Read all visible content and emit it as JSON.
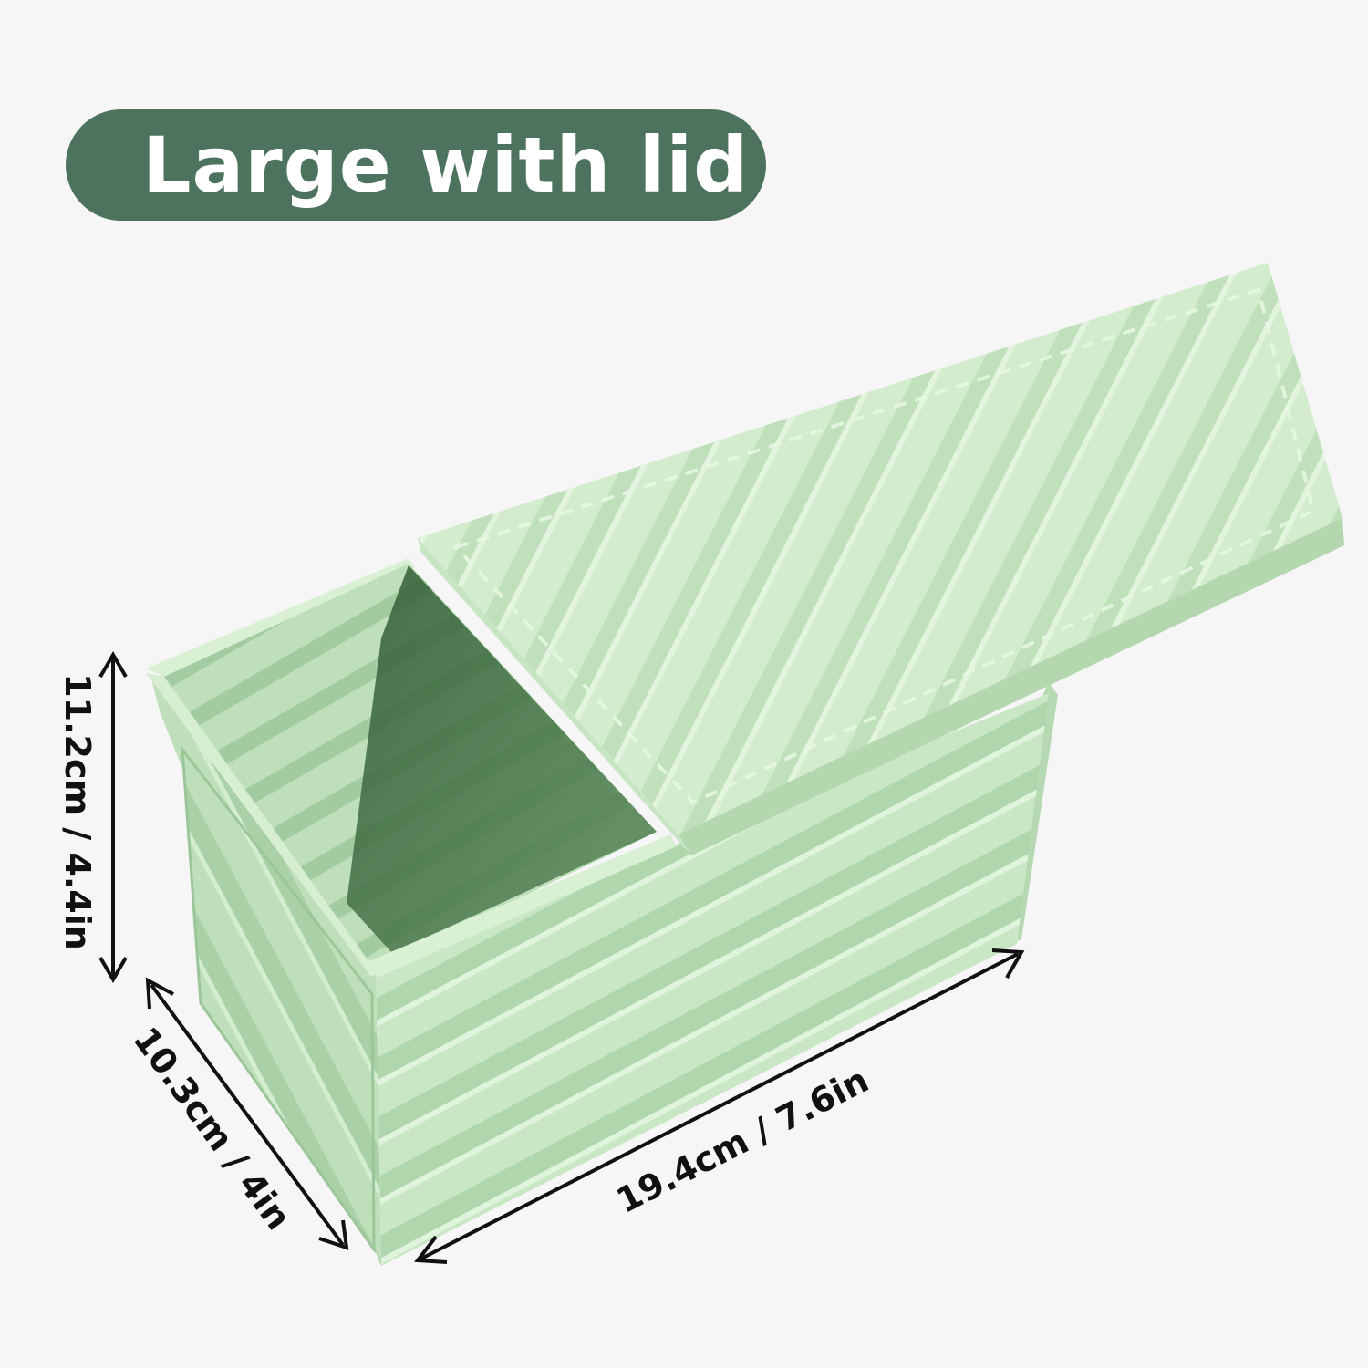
{
  "title": "Large with lid",
  "colors": {
    "pill": "#4d725d",
    "pan_body": "#c6e6c3",
    "pan_light": "#d3edcf",
    "pan_shadow": "#a6cda6",
    "pan_inside_dark": "#3f6b41",
    "arrow": "#111111"
  },
  "dimensions": {
    "height": "11.2cm / 4.4in",
    "width": "10.3cm / 4in",
    "length": "19.4cm / 7.6in"
  }
}
